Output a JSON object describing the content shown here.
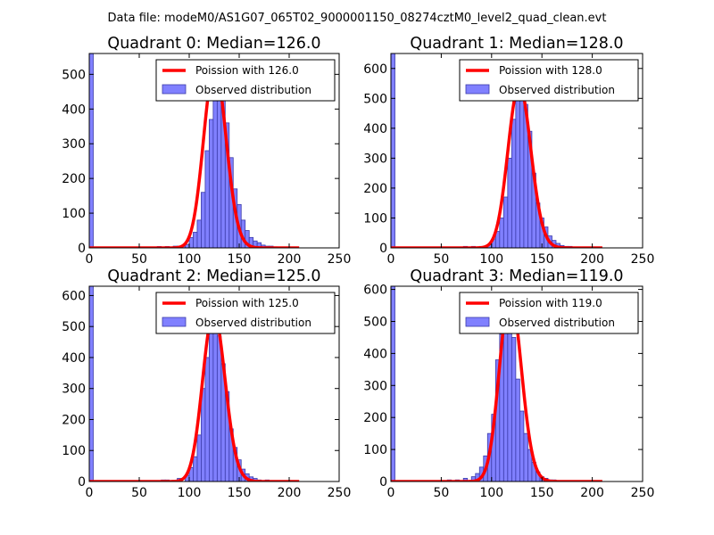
{
  "figure_title": "Data file: modeM0/AS1G07_065T02_9000001150_08274cztM0_level2_quad_clean.evt",
  "colors": {
    "poisson_line": "#ff0000",
    "bar_fill": "#8080ff",
    "bar_edge": "#3a3aa8",
    "axis": "#000000",
    "legend_edge": "#000000"
  },
  "chart_data": [
    {
      "type": "bar",
      "title": "Quadrant 0: Median=126.0",
      "median": 126.0,
      "xlim": [
        0,
        250
      ],
      "ylim": [
        0,
        560
      ],
      "xticks": [
        0,
        50,
        100,
        150,
        200,
        250
      ],
      "yticks": [
        0,
        100,
        200,
        300,
        400,
        500
      ],
      "bin_width": 4,
      "legend": [
        "Poission with 126.0",
        "Observed distribution"
      ],
      "bins": [
        [
          0,
          560
        ],
        [
          68,
          4
        ],
        [
          76,
          4
        ],
        [
          84,
          5
        ],
        [
          88,
          5
        ],
        [
          92,
          5
        ],
        [
          96,
          10
        ],
        [
          100,
          30
        ],
        [
          104,
          45
        ],
        [
          108,
          80
        ],
        [
          112,
          160
        ],
        [
          116,
          280
        ],
        [
          120,
          370
        ],
        [
          124,
          430
        ],
        [
          128,
          495
        ],
        [
          132,
          440
        ],
        [
          136,
          360
        ],
        [
          140,
          260
        ],
        [
          144,
          170
        ],
        [
          148,
          125
        ],
        [
          152,
          80
        ],
        [
          156,
          50
        ],
        [
          160,
          30
        ],
        [
          164,
          20
        ],
        [
          168,
          15
        ],
        [
          172,
          8
        ],
        [
          176,
          5
        ],
        [
          180,
          5
        ],
        [
          184,
          3
        ],
        [
          188,
          2
        ],
        [
          196,
          2
        ]
      ]
    },
    {
      "type": "bar",
      "title": "Quadrant 1: Median=128.0",
      "median": 128.0,
      "xlim": [
        0,
        250
      ],
      "ylim": [
        0,
        650
      ],
      "xticks": [
        0,
        50,
        100,
        150,
        200,
        250
      ],
      "yticks": [
        0,
        100,
        200,
        300,
        400,
        500,
        600
      ],
      "bin_width": 4,
      "legend": [
        "Poission with 128.0",
        "Observed distribution"
      ],
      "bins": [
        [
          0,
          650
        ],
        [
          72,
          5
        ],
        [
          80,
          5
        ],
        [
          88,
          5
        ],
        [
          96,
          10
        ],
        [
          100,
          30
        ],
        [
          104,
          55
        ],
        [
          108,
          100
        ],
        [
          112,
          170
        ],
        [
          116,
          300
        ],
        [
          120,
          430
        ],
        [
          124,
          500
        ],
        [
          128,
          520
        ],
        [
          132,
          480
        ],
        [
          136,
          390
        ],
        [
          140,
          250
        ],
        [
          144,
          150
        ],
        [
          148,
          100
        ],
        [
          152,
          70
        ],
        [
          156,
          40
        ],
        [
          160,
          25
        ],
        [
          164,
          15
        ],
        [
          168,
          8
        ],
        [
          172,
          5
        ],
        [
          176,
          5
        ],
        [
          184,
          3
        ],
        [
          192,
          3
        ],
        [
          200,
          2
        ]
      ]
    },
    {
      "type": "bar",
      "title": "Quadrant 2: Median=125.0",
      "median": 125.0,
      "xlim": [
        0,
        250
      ],
      "ylim": [
        0,
        630
      ],
      "xticks": [
        0,
        50,
        100,
        150,
        200,
        250
      ],
      "yticks": [
        0,
        100,
        200,
        300,
        400,
        500,
        600
      ],
      "bin_width": 4,
      "legend": [
        "Poission with 125.0",
        "Observed distribution"
      ],
      "bins": [
        [
          0,
          630
        ],
        [
          72,
          5
        ],
        [
          76,
          5
        ],
        [
          88,
          10
        ],
        [
          96,
          20
        ],
        [
          100,
          45
        ],
        [
          104,
          80
        ],
        [
          108,
          150
        ],
        [
          112,
          300
        ],
        [
          116,
          400
        ],
        [
          120,
          500
        ],
        [
          124,
          520
        ],
        [
          128,
          470
        ],
        [
          132,
          380
        ],
        [
          136,
          290
        ],
        [
          140,
          170
        ],
        [
          144,
          110
        ],
        [
          148,
          70
        ],
        [
          152,
          40
        ],
        [
          156,
          25
        ],
        [
          160,
          15
        ],
        [
          164,
          10
        ],
        [
          168,
          5
        ],
        [
          176,
          5
        ],
        [
          184,
          3
        ],
        [
          192,
          2
        ],
        [
          200,
          2
        ]
      ]
    },
    {
      "type": "bar",
      "title": "Quadrant 3: Median=119.0",
      "median": 119.0,
      "xlim": [
        0,
        250
      ],
      "ylim": [
        0,
        610
      ],
      "xticks": [
        0,
        50,
        100,
        150,
        200,
        250
      ],
      "yticks": [
        0,
        100,
        200,
        300,
        400,
        500,
        600
      ],
      "bin_width": 4,
      "legend": [
        "Poission with 119.0",
        "Observed distribution"
      ],
      "bins": [
        [
          0,
          610
        ],
        [
          56,
          5
        ],
        [
          64,
          5
        ],
        [
          72,
          10
        ],
        [
          80,
          15
        ],
        [
          84,
          25
        ],
        [
          88,
          45
        ],
        [
          92,
          80
        ],
        [
          96,
          150
        ],
        [
          100,
          210
        ],
        [
          104,
          380
        ],
        [
          108,
          460
        ],
        [
          112,
          525
        ],
        [
          116,
          520
        ],
        [
          120,
          450
        ],
        [
          124,
          320
        ],
        [
          128,
          220
        ],
        [
          132,
          150
        ],
        [
          136,
          100
        ],
        [
          140,
          60
        ],
        [
          144,
          30
        ],
        [
          148,
          15
        ],
        [
          152,
          10
        ],
        [
          156,
          5
        ],
        [
          160,
          5
        ],
        [
          168,
          3
        ],
        [
          176,
          2
        ],
        [
          184,
          2
        ]
      ]
    }
  ]
}
